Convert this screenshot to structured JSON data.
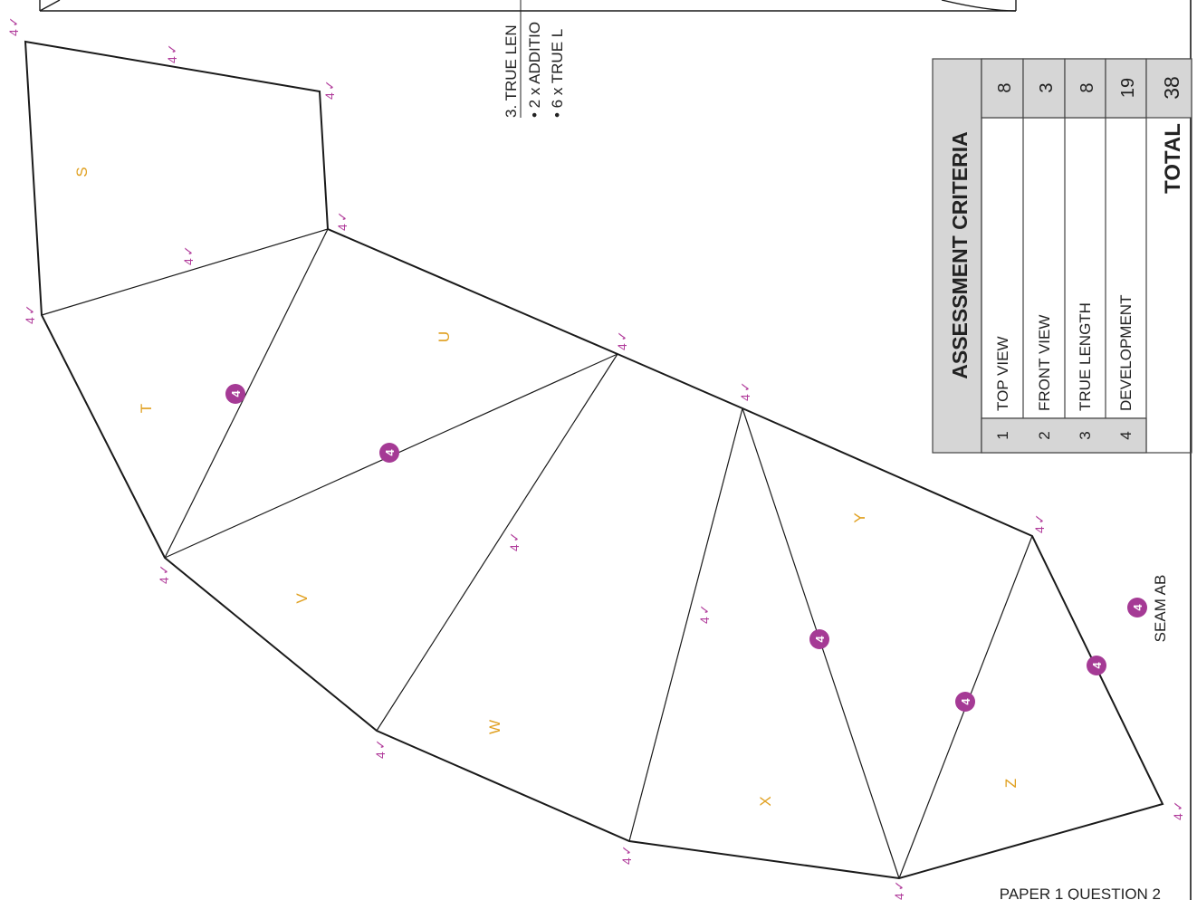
{
  "notes": {
    "line1": "3. TRUE LEN",
    "line2": "• 2 x ADDITIO",
    "line3": "• 6 x TRUE L"
  },
  "assessment": {
    "title": "ASSESSMENT CRITERIA",
    "rows": [
      {
        "num": "1",
        "label": "TOP VIEW",
        "marks": "8"
      },
      {
        "num": "2",
        "label": "FRONT VIEW",
        "marks": "3"
      },
      {
        "num": "3",
        "label": "TRUE LENGTH",
        "marks": "8"
      },
      {
        "num": "4",
        "label": "DEVELOPMENT",
        "marks": "19"
      }
    ],
    "total_label": "TOTAL",
    "total_value": "38"
  },
  "faces": [
    "S",
    "T",
    "U",
    "V",
    "W",
    "X",
    "Y",
    "Z"
  ],
  "tick_mark": "4",
  "badge_value": "4",
  "seam_label": "SEAM AB",
  "footer": "PAPER 1 QUESTION 2",
  "colors": {
    "line": "#1a1a1a",
    "face_label": "#e0a020",
    "tick": "#b03a9a",
    "badge": "#a53a95",
    "table_header": "#d6d6d6"
  }
}
